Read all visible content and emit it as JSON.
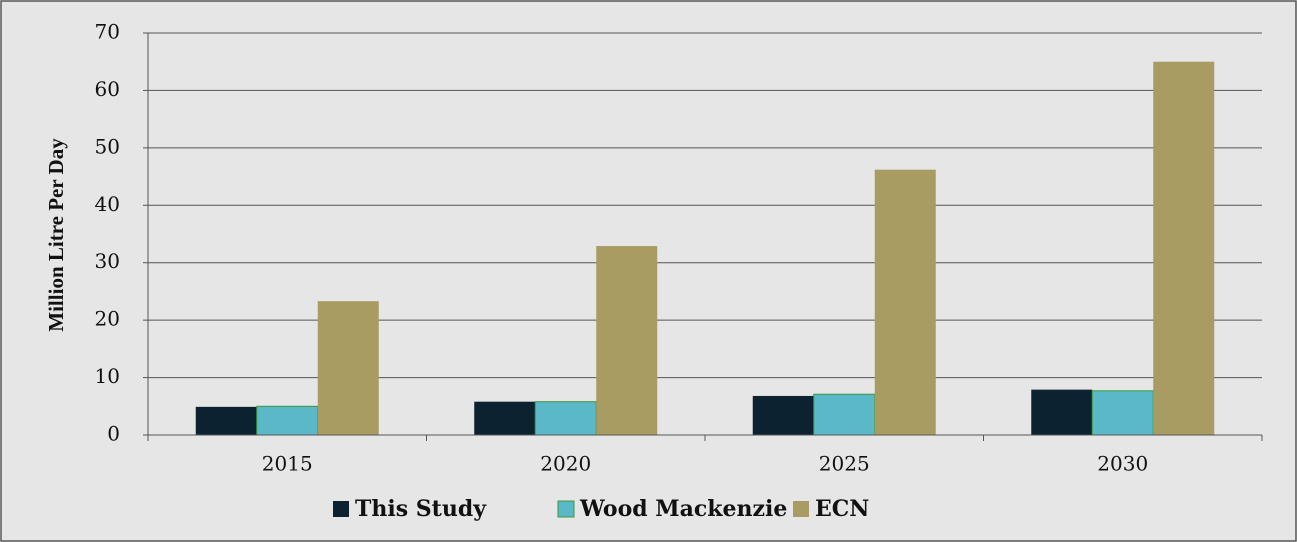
{
  "chart_data": {
    "type": "bar",
    "y_label": "Million Litre Per Day",
    "categories": [
      "2015",
      "2020",
      "2025",
      "2030"
    ],
    "series": [
      {
        "name": "This Study",
        "color": "#0d2230",
        "values": [
          4.9,
          5.8,
          6.8,
          7.9
        ]
      },
      {
        "name": "Wood Mackenzie",
        "color": "#5bb8c8",
        "values": [
          5.0,
          5.8,
          7.1,
          7.7
        ]
      },
      {
        "name": "ECN",
        "color": "#a89c62",
        "values": [
          23.3,
          32.9,
          46.2,
          65.0
        ]
      }
    ],
    "ylim": [
      0,
      70
    ],
    "yticks": [
      0,
      10,
      20,
      30,
      40,
      50,
      60,
      70
    ],
    "grid": true
  }
}
